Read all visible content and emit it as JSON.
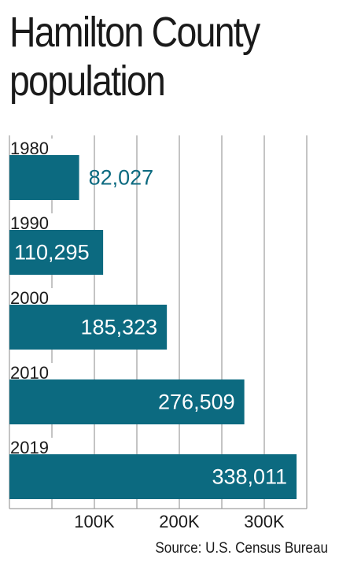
{
  "chart_data": {
    "type": "bar",
    "orientation": "horizontal",
    "title_lines": [
      "Hamilton County",
      "population"
    ],
    "categories": [
      "1980",
      "1990",
      "2000",
      "2010",
      "2019"
    ],
    "values": [
      82027,
      110295,
      185323,
      276509,
      338011
    ],
    "value_labels": [
      "82,027",
      "110,295",
      "185,323",
      "276,509",
      "338,011"
    ],
    "xlim": [
      0,
      350000
    ],
    "x_ticks": [
      100000,
      200000,
      300000
    ],
    "x_tick_labels": [
      "100K",
      "200K",
      "300K"
    ],
    "grid": true,
    "source": "Source: U.S. Census Bureau",
    "colors": {
      "bar": "#0c6a80",
      "outside_label": "#0c6a80",
      "inside_label": "#ffffff",
      "grid": "#8a8a8a",
      "text": "#1a1a1a"
    }
  }
}
